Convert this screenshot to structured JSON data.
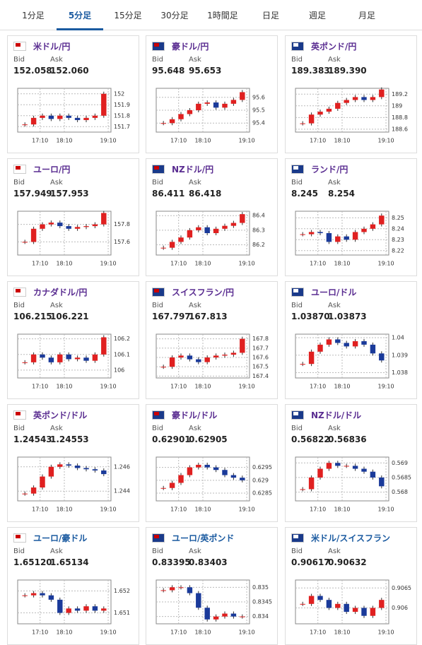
{
  "tabs": [
    "1分足",
    "5分足",
    "15分足",
    "30分足",
    "1時間足",
    "日足",
    "週足",
    "月足"
  ],
  "active_tab": 1,
  "cards": [
    {
      "title": "米ドル/円",
      "bid_label": "Bid",
      "ask_label": "Ask",
      "bid": "152.058",
      "ask": "152.060",
      "chart": {
        "type": "candlestick",
        "ylim": [
          151.65,
          152.05
        ],
        "yticks": [
          151.7,
          151.8,
          151.9,
          152
        ],
        "xticks": [
          "17:10",
          "18:10",
          "19:10"
        ],
        "closes": [
          151.72,
          151.78,
          151.8,
          151.77,
          151.8,
          151.78,
          151.76,
          151.78,
          151.8,
          152.0
        ]
      }
    },
    {
      "title": "豪ドル/円",
      "bid_label": "Bid",
      "ask_label": "Ask",
      "bid": "95.648",
      "ask": "95.653",
      "chart": {
        "type": "candlestick",
        "ylim": [
          95.33,
          95.67
        ],
        "yticks": [
          95.4,
          95.5,
          95.6
        ],
        "xticks": [
          "17:10",
          "18:10",
          "19:10"
        ],
        "closes": [
          95.4,
          95.43,
          95.47,
          95.5,
          95.55,
          95.56,
          95.52,
          95.55,
          95.58,
          95.64
        ]
      }
    },
    {
      "title": "英ポンド/円",
      "bid_label": "Bid",
      "ask_label": "Ask",
      "bid": "189.383",
      "ask": "189.390",
      "chart": {
        "type": "candlestick",
        "ylim": [
          188.55,
          189.3
        ],
        "yticks": [
          188.6,
          188.8,
          189,
          189.2
        ],
        "xticks": [
          "17:10",
          "18:10",
          "19:10"
        ],
        "closes": [
          188.7,
          188.85,
          188.9,
          188.95,
          189.05,
          189.1,
          189.15,
          189.1,
          189.15,
          189.28
        ]
      }
    },
    {
      "title": "ユーロ/円",
      "bid_label": "Bid",
      "ask_label": "Ask",
      "bid": "157.949",
      "ask": "157.953",
      "chart": {
        "type": "candlestick",
        "ylim": [
          157.45,
          157.95
        ],
        "yticks": [
          157.6,
          157.8
        ],
        "xticks": [
          "17:10",
          "18:10",
          "19:10"
        ],
        "closes": [
          157.6,
          157.75,
          157.8,
          157.82,
          157.78,
          157.75,
          157.77,
          157.78,
          157.8,
          157.93
        ]
      }
    },
    {
      "title": "NZドル/円",
      "bid_label": "Bid",
      "ask_label": "Ask",
      "bid": "86.411",
      "ask": "86.418",
      "chart": {
        "type": "candlestick",
        "ylim": [
          86.13,
          86.43
        ],
        "yticks": [
          86.2,
          86.3,
          86.4
        ],
        "xticks": [
          "17:10",
          "18:10",
          "19:10"
        ],
        "closes": [
          86.18,
          86.22,
          86.25,
          86.3,
          86.32,
          86.28,
          86.31,
          86.33,
          86.35,
          86.41
        ]
      }
    },
    {
      "title": "ランド/円",
      "bid_label": "Bid",
      "ask_label": "Ask",
      "bid": "8.245",
      "ask": "8.254",
      "chart": {
        "type": "candlestick",
        "ylim": [
          8.216,
          8.256
        ],
        "yticks": [
          8.22,
          8.23,
          8.24,
          8.25
        ],
        "xticks": [
          "17:10",
          "18:10",
          "19:10"
        ],
        "closes": [
          8.235,
          8.237,
          8.236,
          8.228,
          8.233,
          8.23,
          8.237,
          8.24,
          8.244,
          8.252
        ]
      }
    },
    {
      "title": "カナダドル/円",
      "bid_label": "Bid",
      "ask_label": "Ask",
      "bid": "106.215",
      "ask": "106.221",
      "chart": {
        "type": "candlestick",
        "ylim": [
          105.95,
          106.23
        ],
        "yticks": [
          106,
          106.1,
          106.2
        ],
        "xticks": [
          "17:10",
          "18:10",
          "19:10"
        ],
        "closes": [
          106.05,
          106.1,
          106.08,
          106.05,
          106.1,
          106.07,
          106.08,
          106.06,
          106.1,
          106.21
        ]
      }
    },
    {
      "title": "スイスフラン/円",
      "bid_label": "Bid",
      "ask_label": "Ask",
      "bid": "167.797",
      "ask": "167.813",
      "chart": {
        "type": "candlestick",
        "ylim": [
          167.38,
          167.85
        ],
        "yticks": [
          167.4,
          167.5,
          167.6,
          167.7,
          167.8
        ],
        "xticks": [
          "17:10",
          "18:10",
          "19:10"
        ],
        "closes": [
          167.5,
          167.6,
          167.62,
          167.58,
          167.55,
          167.6,
          167.62,
          167.63,
          167.65,
          167.8
        ]
      }
    },
    {
      "title": "ユーロ/ドル",
      "bid_label": "Bid",
      "ask_label": "Ask",
      "bid": "1.03870",
      "ask": "1.03873",
      "chart": {
        "type": "candlestick",
        "ylim": [
          1.0377,
          1.0402
        ],
        "yticks": [
          1.038,
          1.039,
          1.04
        ],
        "xticks": [
          "17:10",
          "18:10",
          "19:10"
        ],
        "closes": [
          1.0385,
          1.0392,
          1.0396,
          1.0399,
          1.0397,
          1.0395,
          1.0398,
          1.0396,
          1.0391,
          1.0387
        ]
      }
    },
    {
      "title": "英ポンド/ドル",
      "bid_label": "Bid",
      "ask_label": "Ask",
      "bid": "1.24543",
      "ask": "1.24553",
      "chart": {
        "type": "candlestick",
        "ylim": [
          1.2432,
          1.2468
        ],
        "yticks": [
          1.244,
          1.246
        ],
        "xticks": [
          "17:10",
          "18:10",
          "19:10"
        ],
        "closes": [
          1.2438,
          1.2443,
          1.2452,
          1.246,
          1.2462,
          1.2461,
          1.2459,
          1.2458,
          1.2457,
          1.2454
        ]
      }
    },
    {
      "title": "豪ドル/ドル",
      "bid_label": "Bid",
      "ask_label": "Ask",
      "bid": "0.62901",
      "ask": "0.62905",
      "chart": {
        "type": "candlestick",
        "ylim": [
          0.6282,
          0.6299
        ],
        "yticks": [
          0.6285,
          0.629,
          0.6295
        ],
        "xticks": [
          "17:10",
          "18:10",
          "19:10"
        ],
        "closes": [
          0.6287,
          0.6289,
          0.6292,
          0.6295,
          0.6296,
          0.6295,
          0.6294,
          0.6292,
          0.6291,
          0.629
        ]
      }
    },
    {
      "title": "NZドル/ドル",
      "bid_label": "Bid",
      "ask_label": "Ask",
      "bid": "0.56822",
      "ask": "0.56836",
      "chart": {
        "type": "candlestick",
        "ylim": [
          0.5677,
          0.5692
        ],
        "yticks": [
          0.568,
          0.5685,
          0.569
        ],
        "xticks": [
          "17:10",
          "18:10",
          "19:10"
        ],
        "closes": [
          0.5681,
          0.5685,
          0.5688,
          0.569,
          0.5689,
          0.5689,
          0.5688,
          0.5687,
          0.5685,
          0.5682
        ]
      }
    },
    {
      "title": "ユーロ/豪ドル",
      "bid_label": "Bid",
      "ask_label": "Ask",
      "bid": "1.65120",
      "ask": "1.65134",
      "chart": {
        "type": "candlestick",
        "ylim": [
          1.6505,
          1.6525
        ],
        "yticks": [
          1.651,
          1.652
        ],
        "xticks": [
          "17:10",
          "18:10",
          "19:10"
        ],
        "closes": [
          1.6518,
          1.6519,
          1.6518,
          1.6516,
          1.651,
          1.6512,
          1.6511,
          1.6513,
          1.6511,
          1.6512
        ]
      }
    },
    {
      "title": "ユーロ/英ポンド",
      "bid_label": "Bid",
      "ask_label": "Ask",
      "bid": "0.83395",
      "ask": "0.83403",
      "chart": {
        "type": "candlestick",
        "ylim": [
          0.83375,
          0.83525
        ],
        "yticks": [
          0.834,
          0.8345,
          0.835
        ],
        "xticks": [
          "17:10",
          "18:10",
          "19:10"
        ],
        "closes": [
          0.8349,
          0.835,
          0.835,
          0.8348,
          0.8343,
          0.8339,
          0.834,
          0.8341,
          0.834,
          0.834
        ]
      }
    },
    {
      "title": "米ドル/スイスフラン",
      "bid_label": "Bid",
      "ask_label": "Ask",
      "bid": "0.90617",
      "ask": "0.90632",
      "chart": {
        "type": "candlestick",
        "ylim": [
          0.9056,
          0.9067
        ],
        "yticks": [
          0.906,
          0.9065
        ],
        "xticks": [
          "17:10",
          "18:10",
          "19:10"
        ],
        "closes": [
          0.9061,
          0.9063,
          0.9062,
          0.906,
          0.9061,
          0.9059,
          0.906,
          0.9058,
          0.906,
          0.9062
        ]
      }
    }
  ]
}
